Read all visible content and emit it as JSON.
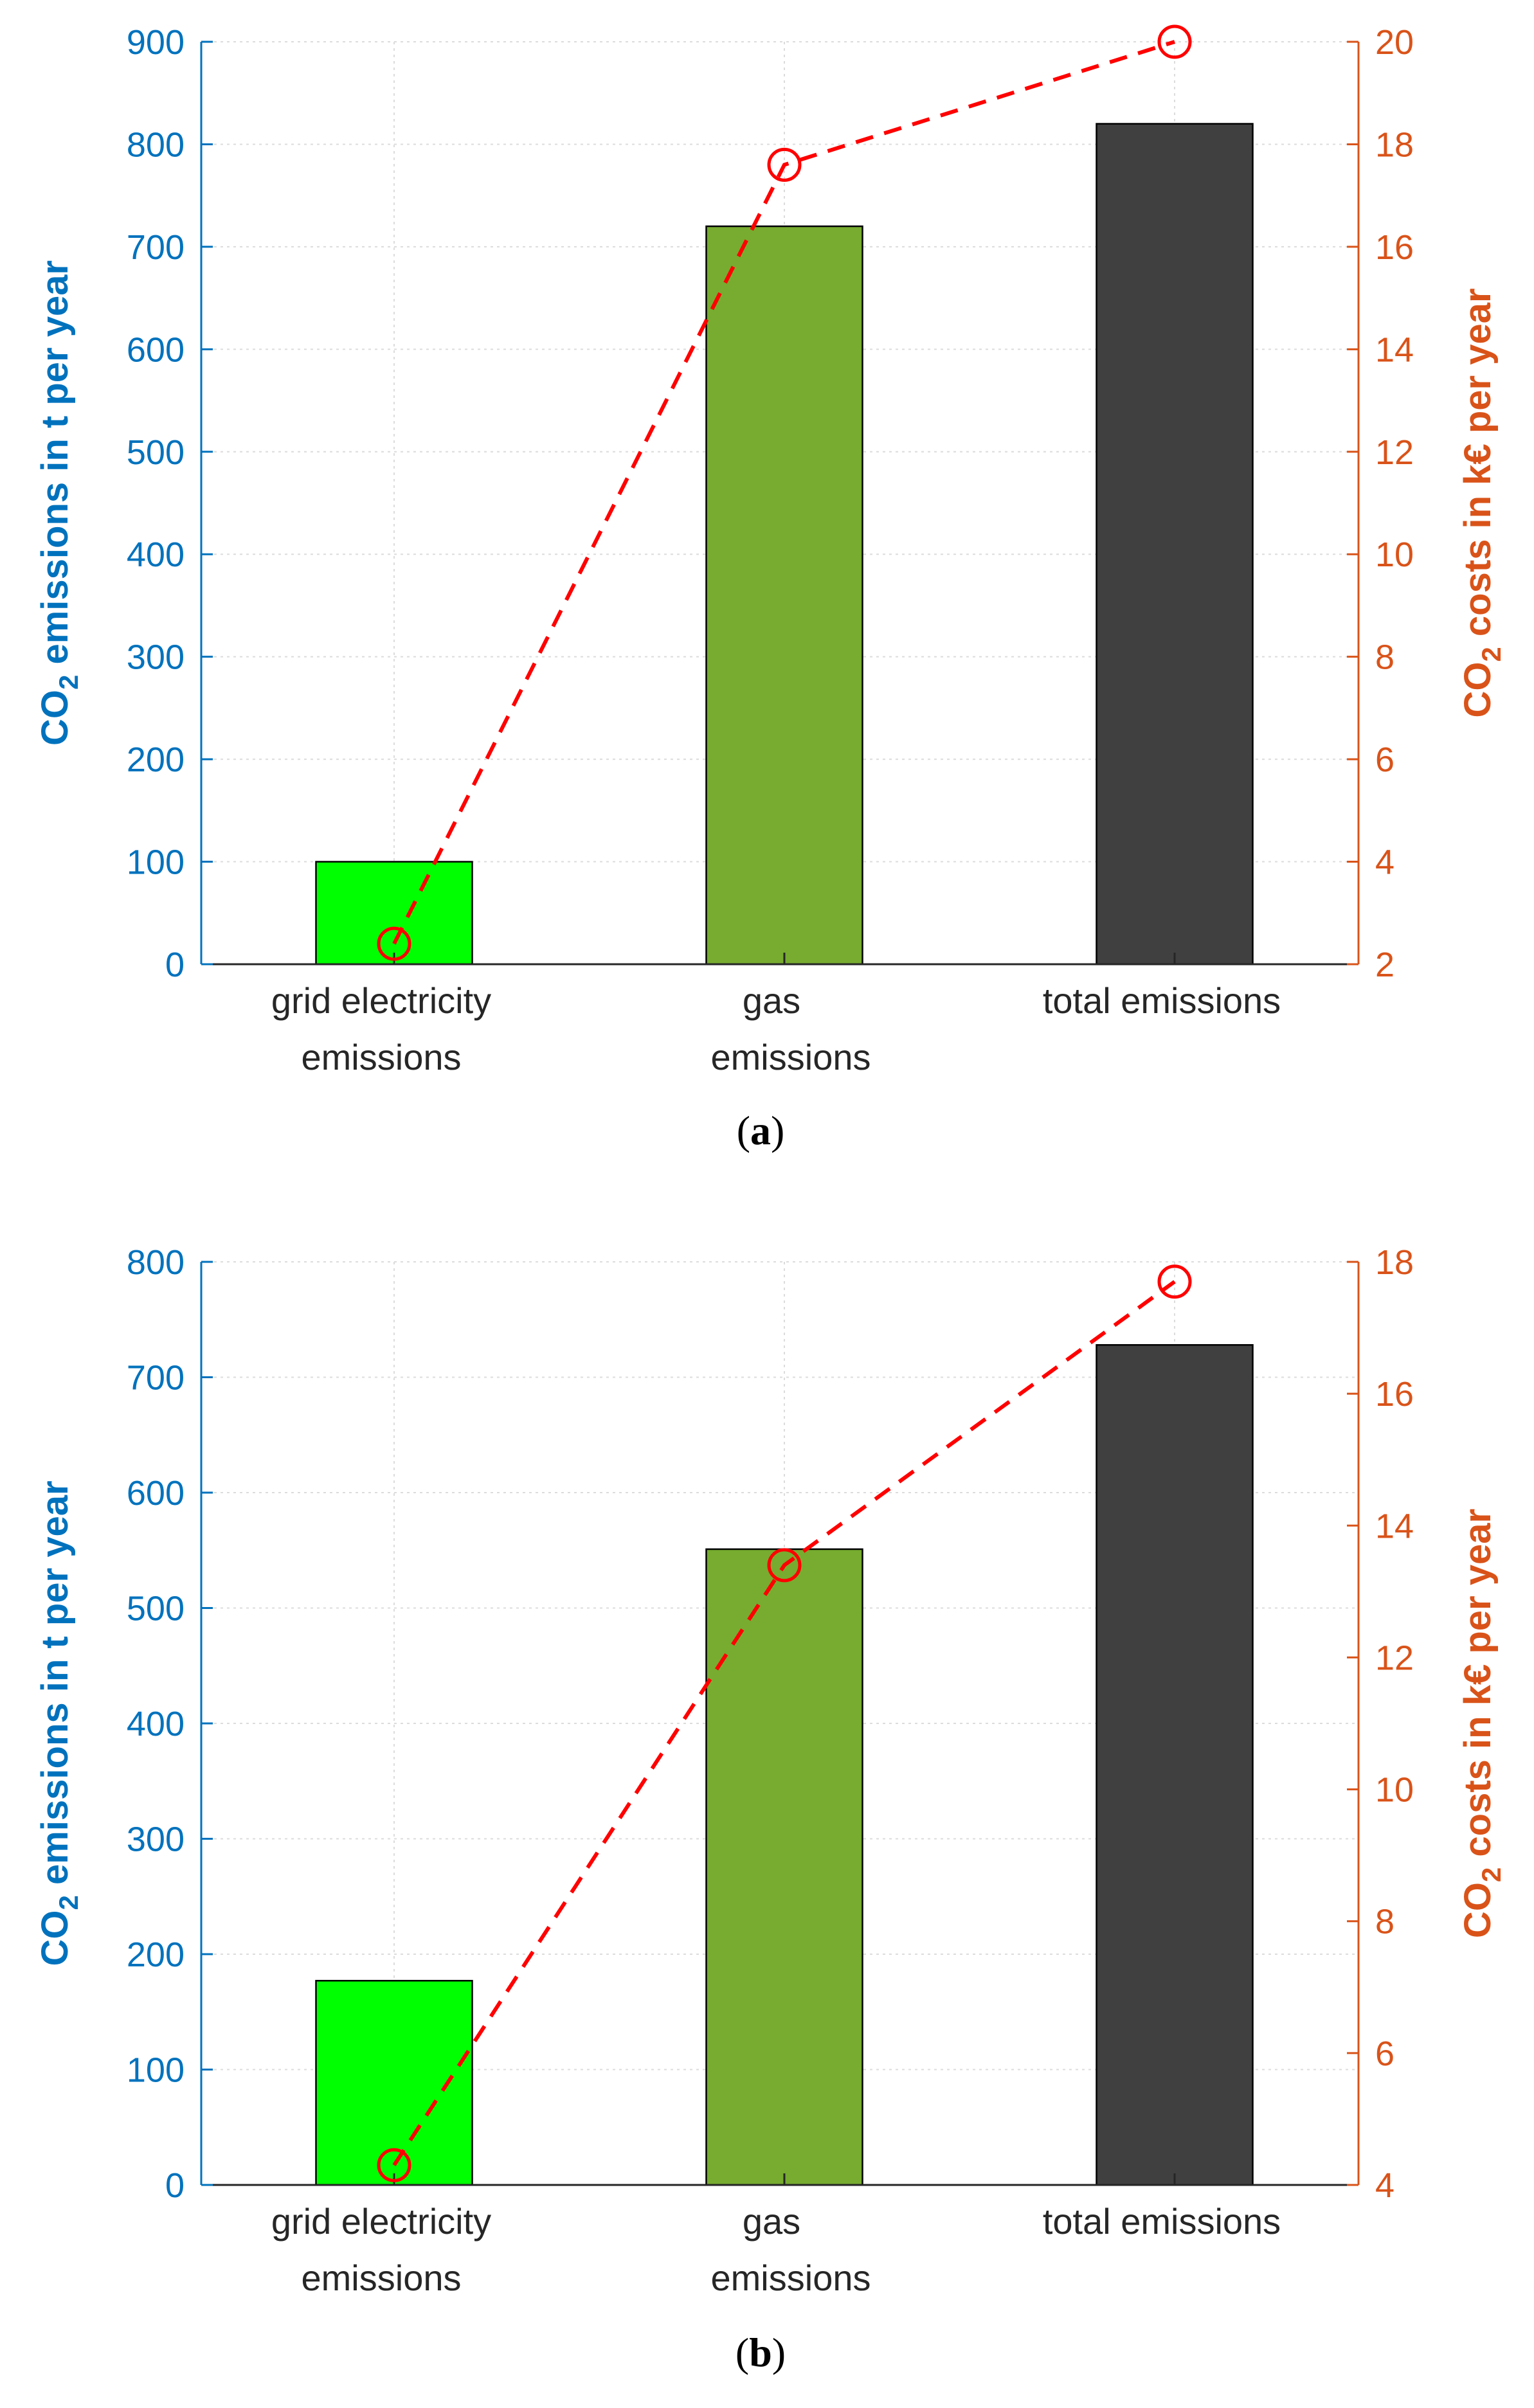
{
  "colors": {
    "left_axis": "#0072BD",
    "right_axis": "#D95319",
    "line": "#FF0000",
    "grid": "#DCDCDC",
    "bar_edge": "#000000",
    "frame": "#262626"
  },
  "chart_data": [
    {
      "type": "bar",
      "panel": "a",
      "caption": {
        "open": "(",
        "letter": "a",
        "close": ")"
      },
      "categories": [
        {
          "line1": "grid electricity",
          "line2": "emissions"
        },
        {
          "line1": "gas",
          "line2": "emissions"
        },
        {
          "line1": "total emissions",
          "line2": ""
        }
      ],
      "bar_colors": [
        "#00FF00",
        "#77AC30",
        "#404040"
      ],
      "values": [
        100,
        720,
        820
      ],
      "ylabel_left": {
        "base": "CO",
        "sub": "2",
        "rest": " emissions in t per year"
      },
      "ylim_left": [
        0,
        900
      ],
      "yticks_left": [
        "0",
        "100",
        "200",
        "300",
        "400",
        "500",
        "600",
        "700",
        "800",
        "900"
      ],
      "line_series": {
        "name": "CO2 costs",
        "style": "dashed",
        "marker": "circle",
        "values": [
          2.4,
          17.6,
          20.0
        ]
      },
      "ylabel_right": {
        "base": "CO",
        "sub": "2",
        "rest": " costs in k€ per year"
      },
      "ylim_right": [
        2,
        20
      ],
      "yticks_right": [
        "2",
        "4",
        "6",
        "8",
        "10",
        "12",
        "14",
        "16",
        "18",
        "20"
      ],
      "grid": true
    },
    {
      "type": "bar",
      "panel": "b",
      "caption": {
        "open": "(",
        "letter": "b",
        "close": ")"
      },
      "categories": [
        {
          "line1": "grid electricity",
          "line2": "emissions"
        },
        {
          "line1": "gas",
          "line2": "emissions"
        },
        {
          "line1": "total emissions",
          "line2": ""
        }
      ],
      "bar_colors": [
        "#00FF00",
        "#77AC30",
        "#404040"
      ],
      "values": [
        177,
        551,
        728
      ],
      "ylabel_left": {
        "base": "CO",
        "sub": "2",
        "rest": " emissions in t per year"
      },
      "ylim_left": [
        0,
        800
      ],
      "yticks_left": [
        "0",
        "100",
        "200",
        "300",
        "400",
        "500",
        "600",
        "700",
        "800"
      ],
      "line_series": {
        "name": "CO2 costs",
        "style": "dashed",
        "marker": "circle",
        "values": [
          4.3,
          13.4,
          17.7
        ]
      },
      "ylabel_right": {
        "base": "CO",
        "sub": "2",
        "rest": " costs in k€ per year"
      },
      "ylim_right": [
        4,
        18
      ],
      "yticks_right": [
        "4",
        "6",
        "8",
        "10",
        "12",
        "14",
        "16",
        "18"
      ],
      "grid": true
    }
  ]
}
